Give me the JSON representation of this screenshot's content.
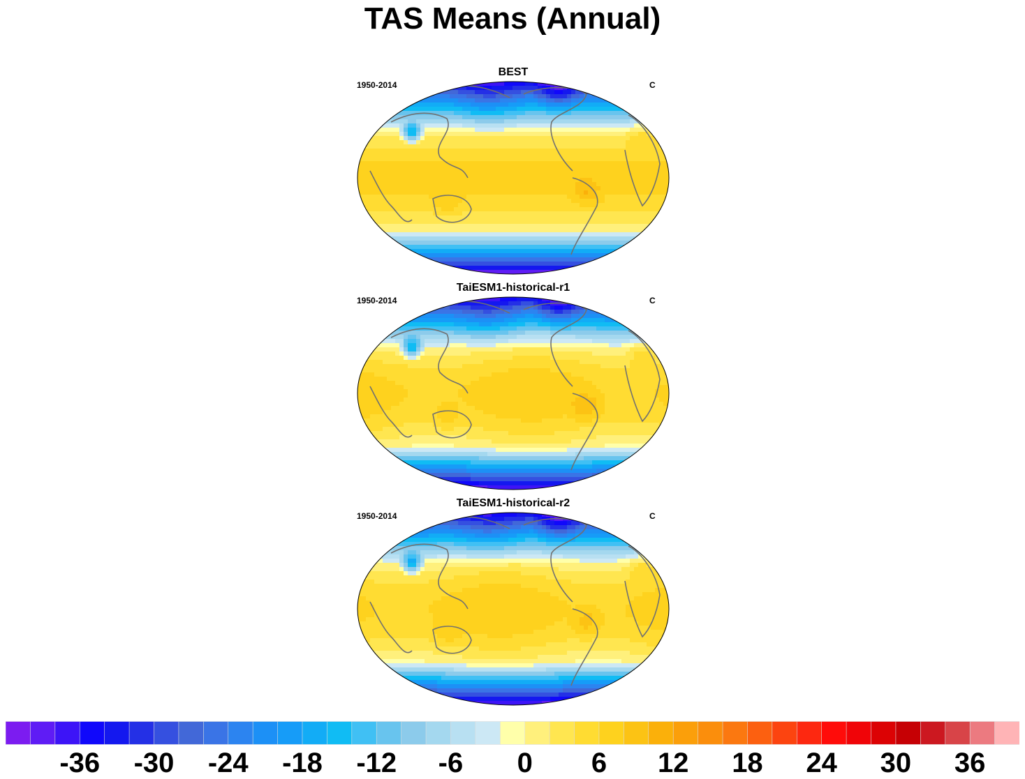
{
  "title": "TAS Means (Annual)",
  "panels": [
    {
      "title": "BEST",
      "period": "1950-2014",
      "units": "C"
    },
    {
      "title": "TaiESM1-historical-r1",
      "period": "1950-2014",
      "units": "C"
    },
    {
      "title": "TaiESM1-historical-r2",
      "period": "1950-2014",
      "units": "C"
    }
  ],
  "colorbar": {
    "colors": [
      "#7c1cf0",
      "#5f1cf5",
      "#3d14f7",
      "#1008fb",
      "#1418ef",
      "#2430e6",
      "#3550e0",
      "#4268d8",
      "#3a74e6",
      "#2c84f0",
      "#1c90f6",
      "#169cf8",
      "#12acf6",
      "#10bcf4",
      "#40c0f4",
      "#68c4ee",
      "#8ccbeb",
      "#a4d8ef",
      "#b8e0f2",
      "#cce8f5",
      "#ffffaa",
      "#fff07c",
      "#ffe650",
      "#ffdc32",
      "#fed21e",
      "#fcc314",
      "#fbb00a",
      "#fb9f0a",
      "#fb8e0c",
      "#fb7810",
      "#fc6010",
      "#fc4410",
      "#fd2810",
      "#ff0c0a",
      "#f00408",
      "#dc0204",
      "#c60004",
      "#cc1820",
      "#d84448",
      "#ec7a80",
      "#ffb4b6"
    ],
    "tick_labels": [
      "-36",
      "-30",
      "-24",
      "-18",
      "-12",
      "-6",
      "0",
      "6",
      "12",
      "18",
      "24",
      "30",
      "36"
    ]
  }
}
